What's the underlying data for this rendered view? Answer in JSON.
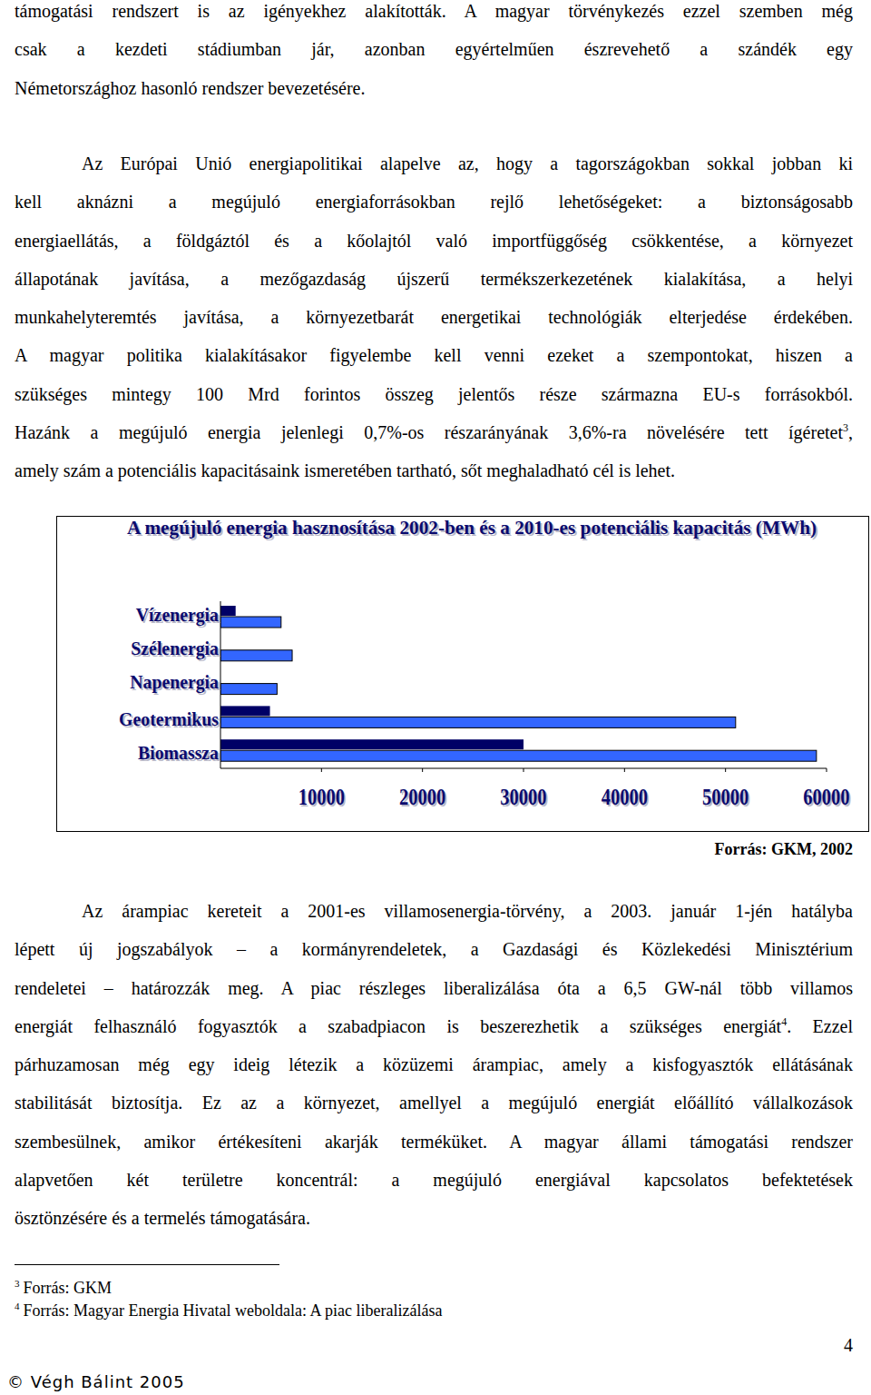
{
  "page": {
    "paragraphs": [
      {
        "indent": false,
        "lines": [
          "támogatási rendszert is az igényekhez alakították. A magyar törvénykezés ezzel szemben még",
          "csak a kezdeti stádiumban jár, azonban egyértelműen észrevehető a szándék egy",
          "Németországhoz hasonló rendszer bevezetésére."
        ]
      },
      {
        "indent": true,
        "lines": [
          "Az Európai Unió energiapolitikai alapelve az, hogy a tagországokban sokkal jobban ki",
          "kell aknázni a megújuló energiaforrásokban rejlő lehetőségeket: a biztonságosabb",
          "energiaellátás, a földgáztól és a kőolajtól való importfüggőség csökkentése, a környezet",
          "állapotának javítása, a mezőgazdaság újszerű termékszerkezetének kialakítása, a helyi",
          "munkahelyteremtés javítása, a környezetbarát energetikai technológiák elterjedése érdekében.",
          "A magyar politika kialakításakor figyelembe kell venni ezeket a szempontokat, hiszen a",
          "szükséges mintegy 100 Mrd forintos összeg jelentős része származna EU-s forrásokból.",
          [
            "Hazánk a megújuló energia jelenlegi 0,7%-os részarányának 3,6%-ra növelésére tett ígéretet",
            {
              "sup": "3"
            },
            ","
          ],
          "amely szám a potenciális kapacitásaink ismeretében tartható, sőt meghaladható cél is lehet."
        ]
      },
      {
        "indent": true,
        "lines": [
          "Az árampiac kereteit a 2001-es villamosenergia-törvény, a 2003. január 1-jén hatályba",
          "lépett új jogszabályok – a kormányrendeletek, a Gazdasági és Közlekedési Minisztérium",
          "rendeletei – határozzák meg. A piac részleges liberalizálása óta a 6,5 GW-nál több villamos",
          [
            "energiát felhasználó fogyasztók a szabadpiacon is beszerezhetik a szükséges energiát",
            {
              "sup": "4"
            },
            ". Ezzel"
          ],
          "párhuzamosan még egy ideig létezik a közüzemi árampiac, amely a kisfogyasztók ellátásának",
          "stabilitását biztosítja. Ez az a környezet, amellyel a megújuló energiát előállító vállalkozások",
          "szembesülnek, amikor értékesíteni akarják terméküket. A magyar állami támogatási rendszer",
          "alapvetően két területre koncentrál: a megújuló energiával kapcsolatos befektetések",
          "ösztönzésére és a termelés támogatására."
        ]
      }
    ],
    "footnotes": [
      {
        "mark": "3",
        "text": "Forrás: GKM"
      },
      {
        "mark": "4",
        "text": "Forrás: Magyar Energia Hivatal weboldala: A piac liberalizálása"
      }
    ],
    "page_number": "4",
    "footer": "© Végh Bálint 2005"
  },
  "chart_data": {
    "type": "bar",
    "orientation": "horizontal",
    "title": "A megújuló energia hasznosítása 2002-ben és a 2010-es potenciális kapacitás (MWh)",
    "categories": [
      "Vízenergia",
      "Szélenergia",
      "Napenergia",
      "Geotermikus",
      "Biomassza"
    ],
    "series": [
      {
        "color": "#000066",
        "values": [
          1500,
          0,
          0,
          4900,
          30000
        ]
      },
      {
        "color": "#3366ff",
        "values": [
          6000,
          7100,
          5600,
          51000,
          59000
        ]
      }
    ],
    "xlim": [
      0,
      60000
    ],
    "xticks": [
      10000,
      20000,
      30000,
      40000,
      50000,
      60000
    ],
    "grid": false,
    "source": "Forrás: GKM, 2002"
  }
}
